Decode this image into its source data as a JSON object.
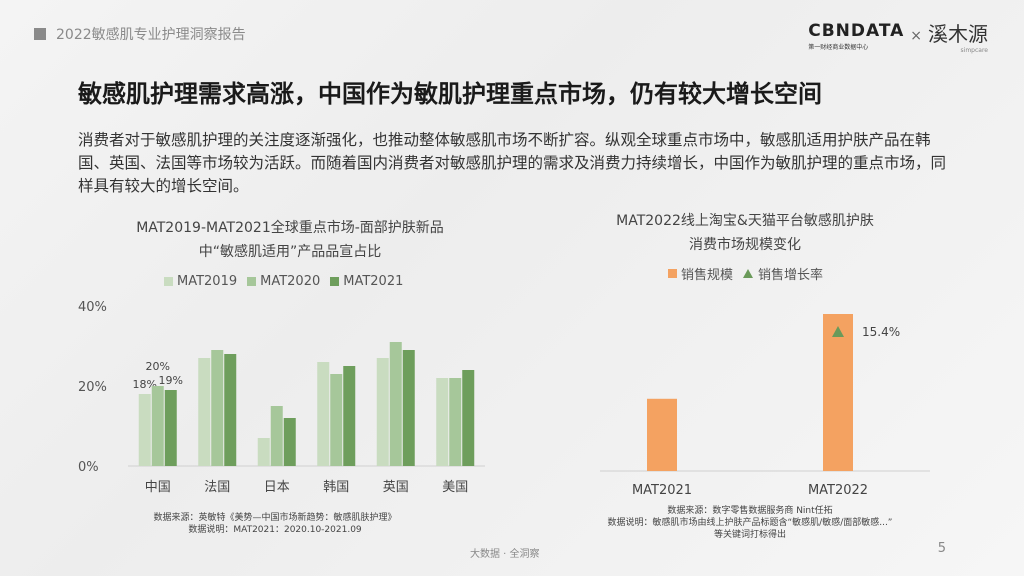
{
  "header": {
    "report_title": "2022敏感肌专业护理洞察报告"
  },
  "logo": {
    "brand1": "CBNDATA",
    "brand1_sub": "第一财经商业数据中心",
    "separator": "×",
    "brand2": "溪木源",
    "brand2_sub": "simpcare"
  },
  "title": "敏感肌护理需求高涨，中国作为敏肌护理重点市场，仍有较大增长空间",
  "description": "消费者对于敏感肌护理的关注度逐渐强化，也推动整体敏感肌市场不断扩容。纵观全球重点市场中，敏感肌适用护肤产品在韩国、英国、法国等市场较为活跃。而随着国内消费者对敏感肌护理的需求及消费力持续增长，中国作为敏肌护理的重点市场，同样具有较大的增长空间。",
  "left_chart": {
    "title_line1": "MAT2019-MAT2021全球重点市场-面部护肤新品",
    "title_line2": "中“敏感肌适用”产品品宣占比",
    "source_line1": "数据来源：英敏特《美势—中国市场新趋势：敏感肌肤护理》",
    "source_line2": "数据说明：MAT2021：2020.10-2021.09"
  },
  "right_chart": {
    "title_line1": "MAT2022线上淘宝&天猫平台敏感肌护肤",
    "title_line2": "消费市场规模变化",
    "source_line1": "数据来源：数字零售数据服务商 Nint任拓",
    "source_line2": "数据说明：敏感肌市场由线上护肤产品标题含“敏感肌/敏感/面部敏感...”",
    "source_line3": "等关键词打标得出"
  },
  "chart_data": [
    {
      "type": "bar",
      "title": "MAT2019-MAT2021全球重点市场-面部护肤新品中“敏感肌适用”产品品宣占比",
      "categories": [
        "中国",
        "法国",
        "日本",
        "韩国",
        "英国",
        "美国"
      ],
      "series": [
        {
          "name": "MAT2019",
          "color": "#c9dcc0",
          "values": [
            18,
            27,
            7,
            26,
            27,
            22
          ]
        },
        {
          "name": "MAT2020",
          "color": "#a6c79a",
          "values": [
            20,
            29,
            15,
            23,
            31,
            22
          ]
        },
        {
          "name": "MAT2021",
          "color": "#6e9e5c",
          "values": [
            19,
            28,
            12,
            25,
            29,
            24
          ]
        }
      ],
      "data_labels": {
        "中国": [
          "18%",
          "20%",
          "19%"
        ]
      },
      "yticks": [
        "0%",
        "20%",
        "40%"
      ],
      "ylim": [
        0,
        40
      ],
      "grid": false,
      "legend": "top"
    },
    {
      "type": "bar",
      "title": "MAT2022线上淘宝&天猫平台敏感肌护肤消费市场规模变化",
      "categories": [
        "MAT2021",
        "MAT2022"
      ],
      "series": [
        {
          "name": "销售规模",
          "color": "#f4a261",
          "values": [
            0.46,
            1.0
          ]
        },
        {
          "name": "销售增长率",
          "color": "#6a9a5a",
          "values": [
            null,
            15.4
          ],
          "label": "15.4%"
        }
      ],
      "legend": "top"
    }
  ],
  "footer": {
    "text": "大数据 · 全洞察",
    "page": "5"
  }
}
